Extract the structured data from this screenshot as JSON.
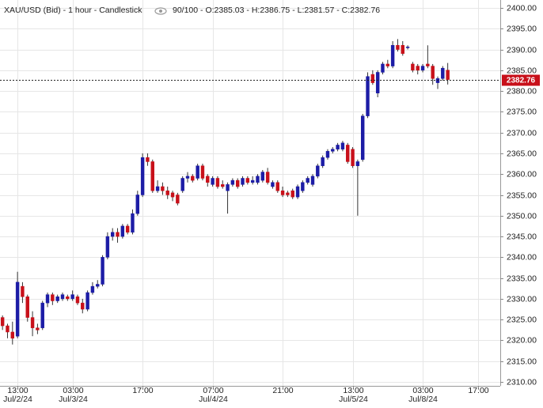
{
  "chart_data": {
    "type": "candlestick",
    "title": "XAU/USD (Bid) - 1 hour - Candlestick",
    "info": "90/100 - O:2385.03 - H:2386.75 - L:2381.57 - C:2382.76",
    "up_color": "#1c1ca6",
    "down_color": "#c8101a",
    "grid": true,
    "xlim": [
      -0.5,
      99.5
    ],
    "ylim": [
      2310,
      2400
    ],
    "yticks": [
      {
        "value": 2400,
        "label": "2400.00"
      },
      {
        "value": 2395,
        "label": "2395.00"
      },
      {
        "value": 2390,
        "label": "2390.00"
      },
      {
        "value": 2385,
        "label": "2385.00"
      },
      {
        "value": 2380,
        "label": "2380.00"
      },
      {
        "value": 2375,
        "label": "2375.00"
      },
      {
        "value": 2370,
        "label": "2370.00"
      },
      {
        "value": 2365,
        "label": "2365.00"
      },
      {
        "value": 2360,
        "label": "2360.00"
      },
      {
        "value": 2355,
        "label": "2355.00"
      },
      {
        "value": 2350,
        "label": "2350.00"
      },
      {
        "value": 2345,
        "label": "2345.00"
      },
      {
        "value": 2340,
        "label": "2340.00"
      },
      {
        "value": 2335,
        "label": "2335.00"
      },
      {
        "value": 2330,
        "label": "2330.00"
      },
      {
        "value": 2325,
        "label": "2325.00"
      },
      {
        "value": 2320,
        "label": "2320.00"
      },
      {
        "value": 2315,
        "label": "2315.00"
      },
      {
        "value": 2310,
        "label": "2310.00"
      }
    ],
    "xticks": [
      {
        "value": 3,
        "label": "13:00",
        "date": "Jul/2/24"
      },
      {
        "value": 14,
        "label": "03:00",
        "date": "Jul/3/24"
      },
      {
        "value": 28,
        "label": "17:00"
      },
      {
        "value": 42,
        "label": "07:00",
        "date": "Jul/4/24"
      },
      {
        "value": 56,
        "label": "21:00"
      },
      {
        "value": 70,
        "label": "13:00",
        "date": "Jul/5/24"
      },
      {
        "value": 84,
        "label": "03:00",
        "date": "Jul/8/24"
      },
      {
        "value": 95,
        "label": "17:00"
      }
    ],
    "current_price": {
      "value": 2382.76,
      "label": "2382.76"
    },
    "open": [
      2325.5,
      2323.5,
      2322,
      2321,
      2333,
      2330.5,
      2325.5,
      2323,
      2323,
      2329,
      2331,
      2329.5,
      2330,
      2330.5,
      2330,
      2330.5,
      2329,
      2327.5,
      2331.5,
      2333,
      2333.5,
      2340,
      2345,
      2346,
      2345,
      2347.5,
      2346,
      2350.5,
      2355,
      2364,
      2363,
      2356,
      2357,
      2356,
      2355.5,
      2355,
      2356,
      2359,
      2359.5,
      2359,
      2362,
      2359.5,
      2357.5,
      2359,
      2357.5,
      2356,
      2357.5,
      2358.5,
      2357.5,
      2359,
      2358,
      2358,
      2358.5,
      2360.5,
      2357,
      2358,
      2356,
      2355.5,
      2356,
      2354.5,
      2356,
      2358,
      2357.5,
      2359.5,
      2362,
      2364,
      2365.5,
      2366,
      2366,
      2367,
      2366,
      2362,
      2363.5,
      2374,
      2384,
      2379.5,
      2384.5,
      2386.5,
      2386,
      2391,
      2391,
      2390.4,
      2386.5,
      2386,
      2385,
      2386.5,
      2386,
      2382,
      2383,
      2385.03
    ],
    "high": [
      2326,
      2324,
      2324.5,
      2336.5,
      2334,
      2331,
      2327,
      2324,
      2329.5,
      2331.5,
      2331.5,
      2331,
      2331.5,
      2331,
      2332,
      2331,
      2330,
      2332,
      2334,
      2334.5,
      2340.5,
      2346,
      2347,
      2347,
      2348,
      2348,
      2351.5,
      2356,
      2365,
      2365,
      2363.5,
      2358.5,
      2358,
      2357,
      2356,
      2355.5,
      2359.5,
      2360.5,
      2360,
      2362.5,
      2362.5,
      2360,
      2359.5,
      2359.5,
      2358.5,
      2358,
      2359,
      2359,
      2359.5,
      2359.5,
      2359.5,
      2360,
      2361,
      2361.5,
      2358.5,
      2358.5,
      2357,
      2356,
      2356.5,
      2357.5,
      2358.5,
      2359.5,
      2360,
      2362.5,
      2364.5,
      2366,
      2366.5,
      2367.5,
      2368,
      2367.5,
      2366.5,
      2363.5,
      2374.5,
      2384.5,
      2385,
      2385,
      2387,
      2387.5,
      2392,
      2392.5,
      2392,
      2391,
      2387,
      2386.5,
      2386.5,
      2391,
      2386.5,
      2383.5,
      2386,
      2386.75
    ],
    "low": [
      2322.5,
      2320.5,
      2319,
      2320.5,
      2329,
      2324.5,
      2321,
      2321.5,
      2322.5,
      2328,
      2328.5,
      2329,
      2329.5,
      2329.5,
      2329.5,
      2328.5,
      2326.5,
      2327,
      2331,
      2332.5,
      2333,
      2339.5,
      2344,
      2343.5,
      2344.5,
      2345.5,
      2345.5,
      2350,
      2354.5,
      2362,
      2355.5,
      2355.5,
      2355,
      2354,
      2353.5,
      2352.5,
      2355.5,
      2358,
      2358,
      2358.5,
      2358.5,
      2357,
      2357,
      2356.5,
      2356.5,
      2350.5,
      2357,
      2356.5,
      2357,
      2357.5,
      2357.5,
      2357.5,
      2358,
      2357.5,
      2356.5,
      2355.5,
      2354.5,
      2354.5,
      2354,
      2354,
      2355.5,
      2357.5,
      2357,
      2359,
      2361.5,
      2363.5,
      2365,
      2365.5,
      2365.5,
      2362.5,
      2361.5,
      2350,
      2363,
      2373.5,
      2381.5,
      2378.5,
      2384,
      2385.5,
      2385.5,
      2389.5,
      2388.5,
      2390,
      2384.5,
      2384,
      2384.5,
      2385.5,
      2381.5,
      2380.5,
      2382.5,
      2381.57
    ],
    "close": [
      2323.5,
      2322,
      2320.5,
      2334,
      2330.5,
      2325.5,
      2323,
      2322.5,
      2329,
      2331,
      2329.5,
      2330.5,
      2331,
      2330,
      2331,
      2329,
      2327.5,
      2331.5,
      2333,
      2333.5,
      2340,
      2345,
      2346,
      2345,
      2347.5,
      2346,
      2350.5,
      2355,
      2364,
      2363,
      2356,
      2357,
      2356,
      2355,
      2354.5,
      2353,
      2359,
      2359.5,
      2358.5,
      2362,
      2359,
      2358,
      2359,
      2357,
      2357,
      2357.5,
      2358.5,
      2357,
      2359,
      2358,
      2358.5,
      2359.5,
      2360.5,
      2358,
      2358,
      2356,
      2355,
      2355,
      2354.5,
      2357,
      2358,
      2359,
      2359.5,
      2362,
      2364,
      2365.5,
      2366,
      2367,
      2367.5,
      2363,
      2362,
      2363,
      2374,
      2383.5,
      2382,
      2384.5,
      2386.5,
      2386,
      2391,
      2390,
      2389,
      2390.6,
      2385,
      2385,
      2386,
      2386,
      2383,
      2383,
      2385.5,
      2382.76
    ]
  }
}
